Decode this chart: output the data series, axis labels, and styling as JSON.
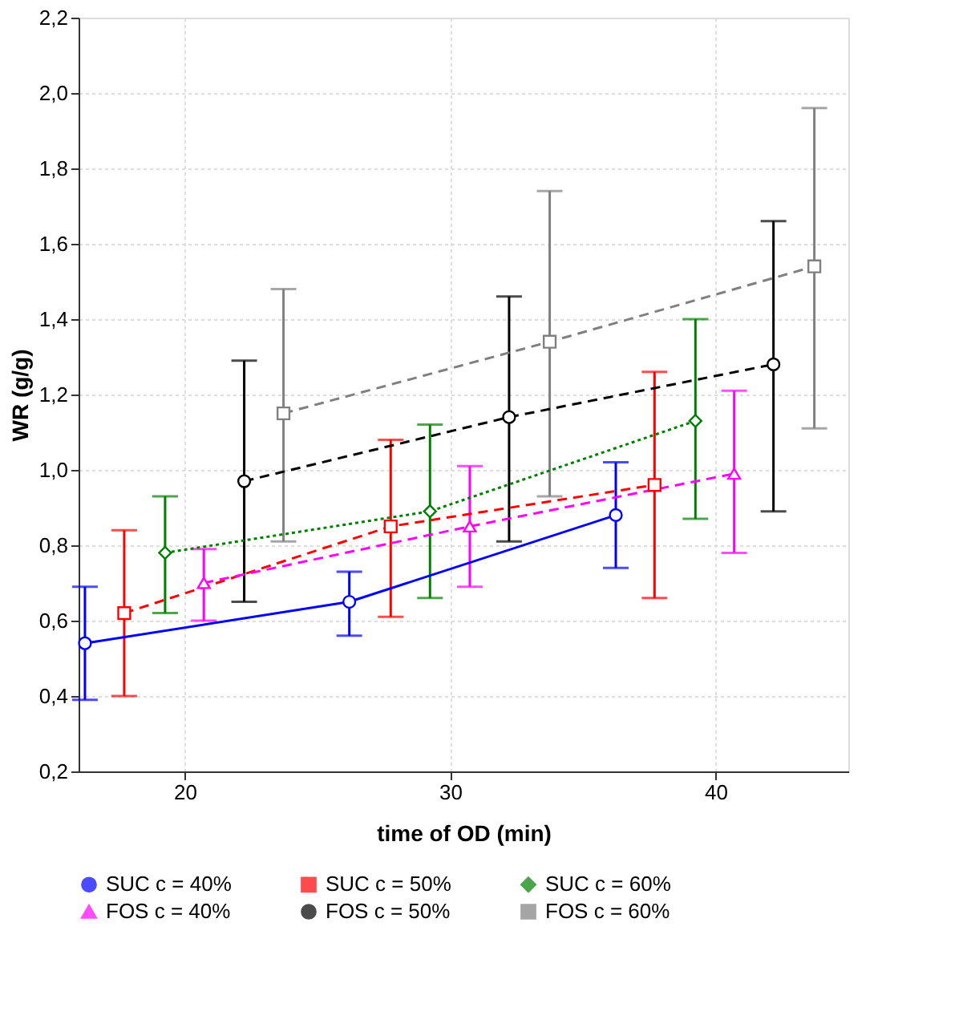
{
  "chart_data": {
    "type": "line",
    "xlabel": "time of OD (min)",
    "ylabel": "WR (g/g)",
    "xlim": [
      16,
      45
    ],
    "xticks": [
      20,
      30,
      40
    ],
    "ylim": [
      0.2,
      2.2
    ],
    "yticks": [
      {
        "value": 0.2,
        "label": "0,2"
      },
      {
        "value": 0.4,
        "label": "0,4"
      },
      {
        "value": 0.6,
        "label": "0,6"
      },
      {
        "value": 0.8,
        "label": "0,8"
      },
      {
        "value": 1.0,
        "label": "1,0"
      },
      {
        "value": 1.2,
        "label": "1,2"
      },
      {
        "value": 1.4,
        "label": "1,4"
      },
      {
        "value": 1.6,
        "label": "1,6"
      },
      {
        "value": 1.8,
        "label": "1,8"
      },
      {
        "value": 2.0,
        "label": "2,0"
      },
      {
        "value": 2.2,
        "label": "2,2"
      }
    ],
    "grid": true,
    "legend": "bottom",
    "series": [
      {
        "name": "SUC c = 40%",
        "color": "#0000ff",
        "marker": "circle",
        "line_style": "solid",
        "x": [
          16.24,
          26.2,
          36.24
        ],
        "values": [
          0.54,
          0.65,
          0.88
        ],
        "errors": [
          [
            0.39,
            0.69
          ],
          [
            0.56,
            0.73
          ],
          [
            0.74,
            1.02
          ]
        ]
      },
      {
        "name": "SUC c = 50%",
        "color": "#ff0000",
        "marker": "square",
        "line_style": "dashed",
        "x": [
          17.72,
          27.76,
          37.7
        ],
        "values": [
          0.62,
          0.85,
          0.96
        ],
        "errors": [
          [
            0.4,
            0.84
          ],
          [
            0.61,
            1.08
          ],
          [
            0.66,
            1.26
          ]
        ]
      },
      {
        "name": "SUC c = 60%",
        "color": "#008000",
        "marker": "diamond",
        "line_style": "dotted",
        "x": [
          19.26,
          29.24,
          39.24
        ],
        "values": [
          0.78,
          0.89,
          1.13
        ],
        "errors": [
          [
            0.62,
            0.93
          ],
          [
            0.66,
            1.12
          ],
          [
            0.87,
            1.4
          ]
        ]
      },
      {
        "name": "FOS c = 40%",
        "color": "#ff00ff",
        "marker": "triangle",
        "line_style": "dashed",
        "x": [
          20.72,
          30.74,
          40.7
        ],
        "values": [
          0.7,
          0.85,
          0.99
        ],
        "errors": [
          [
            0.6,
            0.79
          ],
          [
            0.69,
            1.01
          ],
          [
            0.78,
            1.21
          ]
        ]
      },
      {
        "name": "FOS c = 50%",
        "color": "#000000",
        "marker": "circle",
        "line_style": "dashed",
        "x": [
          22.24,
          32.22,
          42.18
        ],
        "values": [
          0.97,
          1.14,
          1.28
        ],
        "errors": [
          [
            0.65,
            1.29
          ],
          [
            0.81,
            1.46
          ],
          [
            0.89,
            1.66
          ]
        ]
      },
      {
        "name": "FOS c = 60%",
        "color": "#808080",
        "marker": "square",
        "line_style": "dashed",
        "x": [
          23.72,
          33.75,
          43.72
        ],
        "values": [
          1.15,
          1.34,
          1.54
        ],
        "errors": [
          [
            0.81,
            1.48
          ],
          [
            0.93,
            1.74
          ],
          [
            1.11,
            1.96
          ]
        ]
      }
    ]
  }
}
